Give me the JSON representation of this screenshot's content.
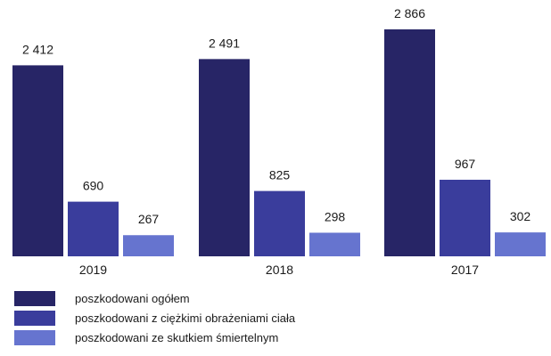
{
  "chart_data": {
    "type": "bar",
    "categories": [
      "2019",
      "2018",
      "2017"
    ],
    "series": [
      {
        "name": "poszkodowani ogółem",
        "values": [
          2412,
          2491,
          2866
        ],
        "labels": [
          "2 412",
          "2 491",
          "2 866"
        ],
        "color": "#272566"
      },
      {
        "name": "poszkodowani z ciężkimi obrażeniami ciała",
        "values": [
          690,
          825,
          967
        ],
        "labels": [
          "690",
          "825",
          "967"
        ],
        "color": "#3a3d9c"
      },
      {
        "name": "poszkodowani ze skutkiem śmiertelnym",
        "values": [
          267,
          298,
          302
        ],
        "labels": [
          "267",
          "298",
          "302"
        ],
        "color": "#6674cf"
      }
    ],
    "ylim": [
      0,
      2866
    ],
    "grid": false,
    "legend_position": "bottom-left"
  }
}
